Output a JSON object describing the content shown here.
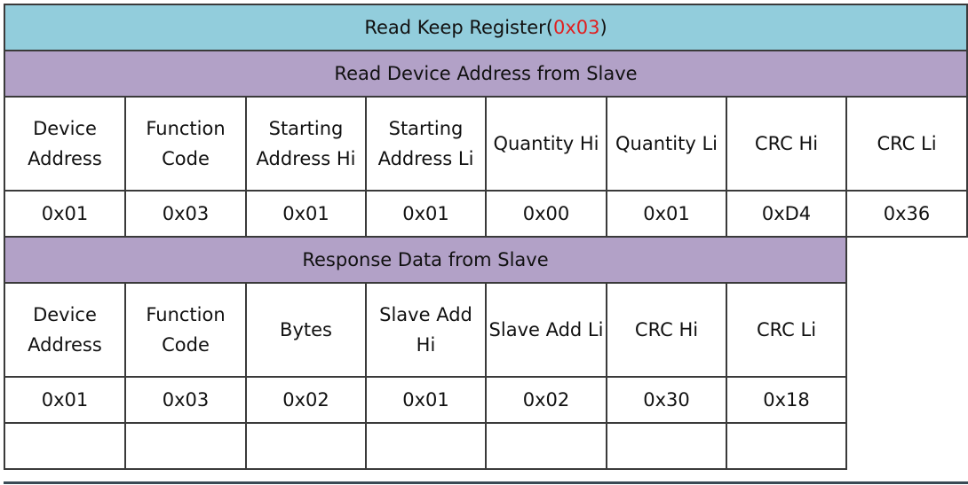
{
  "title": {
    "prefix": "Read Keep Register(",
    "code": "0x03",
    "suffix": ")"
  },
  "request": {
    "heading": "Read Device Address from Slave",
    "headers": [
      "Device Address",
      "Function Code",
      "Starting Address Hi",
      "Starting Address Li",
      "Quantity Hi",
      "Quantity Li",
      "CRC Hi",
      "CRC Li"
    ],
    "values": [
      "0x01",
      "0x03",
      "0x01",
      "0x01",
      "0x00",
      "0x01",
      "0xD4",
      "0x36"
    ]
  },
  "response": {
    "heading": "Response Data from Slave",
    "headers": [
      "Device Address",
      "Function Code",
      "Bytes",
      "Slave Add Hi",
      "Slave Add Li",
      "CRC Hi",
      "CRC Li"
    ],
    "values": [
      "0x01",
      "0x03",
      "0x02",
      "0x01",
      "0x02",
      "0x30",
      "0x18"
    ]
  },
  "colors": {
    "title_bg": "#92CDDC",
    "section_bg": "#B2A1C7",
    "code_text": "#e02020"
  }
}
